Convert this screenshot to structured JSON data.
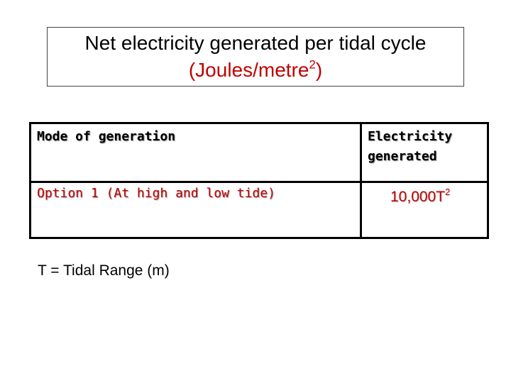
{
  "title": {
    "line1": "Net electricity generated per tidal cycle",
    "line2": {
      "text": "(Joules/metre",
      "sup": "2",
      "close": ")"
    }
  },
  "table": {
    "header": [
      "Mode of generation",
      "Electricity generated"
    ],
    "rows": [
      [
        "Option 1 (At high and low tide)",
        {
          "text": "10,000T",
          "sup": "2"
        }
      ]
    ]
  },
  "note": "T = Tidal Range (m)"
}
